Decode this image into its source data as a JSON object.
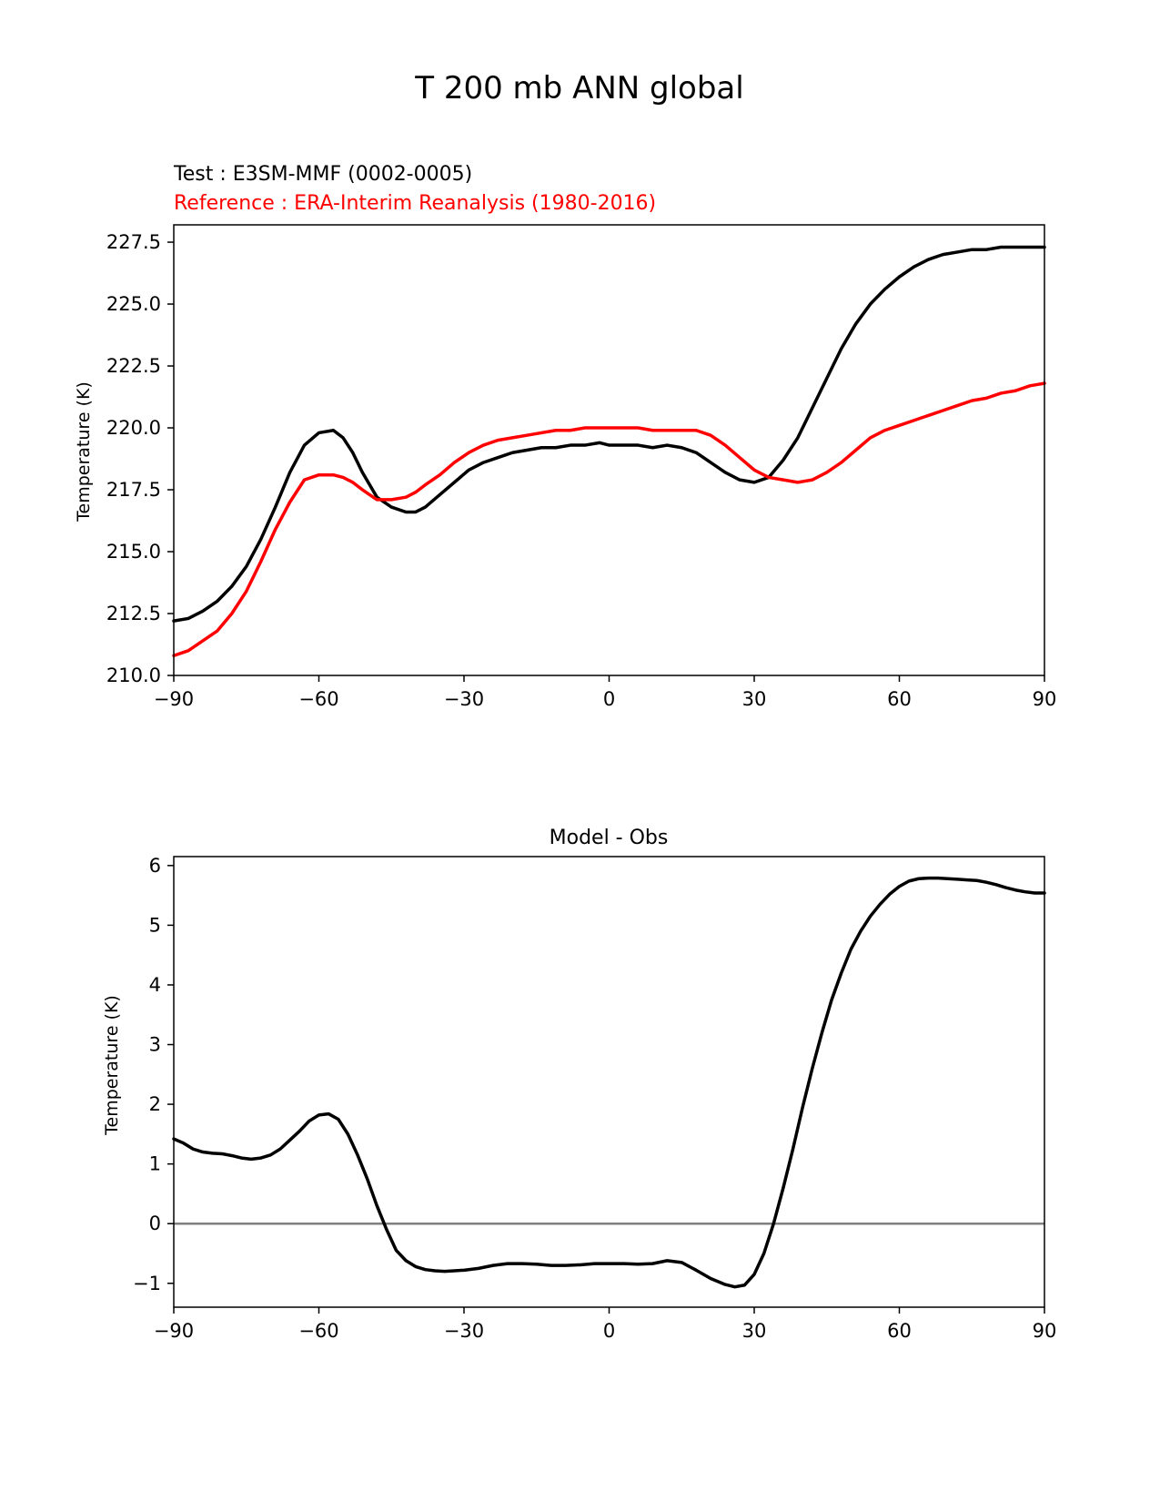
{
  "figure": {
    "title": "T 200 mb ANN global"
  },
  "chart_data": [
    {
      "type": "line",
      "test_label": "Test : E3SM-MMF (0002-0005)",
      "reference_label": "Reference : ERA-Interim Reanalysis (1980-2016)",
      "xlabel": "",
      "ylabel": "Temperature (K)",
      "xlim": [
        -90,
        90
      ],
      "ylim": [
        210,
        228.2
      ],
      "xticks": [
        -90,
        -60,
        -30,
        0,
        30,
        60,
        90
      ],
      "xtick_labels": [
        "−90",
        "−60",
        "−30",
        "0",
        "30",
        "60",
        "90"
      ],
      "yticks": [
        210,
        212.5,
        215,
        217.5,
        220,
        222.5,
        225,
        227.5
      ],
      "ytick_labels": [
        "210.0",
        "212.5",
        "215.0",
        "217.5",
        "220.0",
        "222.5",
        "225.0",
        "227.5"
      ],
      "series": [
        {
          "name": "Test",
          "color": "#000000",
          "x": [
            -90,
            -87,
            -84,
            -81,
            -78,
            -75,
            -72,
            -69,
            -66,
            -63,
            -60,
            -57,
            -55,
            -53,
            -51,
            -48,
            -45,
            -42,
            -40,
            -38,
            -35,
            -32,
            -29,
            -26,
            -23,
            -20,
            -17,
            -14,
            -11,
            -8,
            -5,
            -2,
            0,
            3,
            6,
            9,
            12,
            15,
            18,
            21,
            24,
            27,
            30,
            33,
            36,
            39,
            42,
            45,
            48,
            51,
            54,
            57,
            60,
            63,
            66,
            69,
            72,
            75,
            78,
            81,
            84,
            87,
            90
          ],
          "values": [
            212.2,
            212.3,
            212.6,
            213.0,
            213.6,
            214.4,
            215.5,
            216.8,
            218.2,
            219.3,
            219.8,
            219.9,
            219.6,
            219.0,
            218.2,
            217.2,
            216.8,
            216.6,
            216.6,
            216.8,
            217.3,
            217.8,
            218.3,
            218.6,
            218.8,
            219.0,
            219.1,
            219.2,
            219.2,
            219.3,
            219.3,
            219.4,
            219.3,
            219.3,
            219.3,
            219.2,
            219.3,
            219.2,
            219.0,
            218.6,
            218.2,
            217.9,
            217.8,
            218.0,
            218.7,
            219.6,
            220.8,
            222.0,
            223.2,
            224.2,
            225.0,
            225.6,
            226.1,
            226.5,
            226.8,
            227.0,
            227.1,
            227.2,
            227.2,
            227.3,
            227.3,
            227.3,
            227.3
          ]
        },
        {
          "name": "Reference",
          "color": "#ff0000",
          "x": [
            -90,
            -87,
            -84,
            -81,
            -78,
            -75,
            -72,
            -69,
            -66,
            -63,
            -60,
            -57,
            -55,
            -53,
            -51,
            -48,
            -45,
            -42,
            -40,
            -38,
            -35,
            -32,
            -29,
            -26,
            -23,
            -20,
            -17,
            -14,
            -11,
            -8,
            -5,
            -2,
            0,
            3,
            6,
            9,
            12,
            15,
            18,
            21,
            24,
            27,
            30,
            33,
            36,
            39,
            42,
            45,
            48,
            51,
            54,
            57,
            60,
            63,
            66,
            69,
            72,
            75,
            78,
            81,
            84,
            87,
            90
          ],
          "values": [
            210.8,
            211.0,
            211.4,
            211.8,
            212.5,
            213.4,
            214.6,
            215.9,
            217.0,
            217.9,
            218.1,
            218.1,
            218.0,
            217.8,
            217.5,
            217.1,
            217.1,
            217.2,
            217.4,
            217.7,
            218.1,
            218.6,
            219.0,
            219.3,
            219.5,
            219.6,
            219.7,
            219.8,
            219.9,
            219.9,
            220.0,
            220.0,
            220.0,
            220.0,
            220.0,
            219.9,
            219.9,
            219.9,
            219.9,
            219.7,
            219.3,
            218.8,
            218.3,
            218.0,
            217.9,
            217.8,
            217.9,
            218.2,
            218.6,
            219.1,
            219.6,
            219.9,
            220.1,
            220.3,
            220.5,
            220.7,
            220.9,
            221.1,
            221.2,
            221.4,
            221.5,
            221.7,
            221.8
          ]
        }
      ]
    },
    {
      "type": "line",
      "title": "Model - Obs",
      "xlabel": "",
      "ylabel": "Temperature (K)",
      "xlim": [
        -90,
        90
      ],
      "ylim": [
        -1.4,
        6.15
      ],
      "xticks": [
        -90,
        -60,
        -30,
        0,
        30,
        60,
        90
      ],
      "xtick_labels": [
        "−90",
        "−60",
        "−30",
        "0",
        "30",
        "60",
        "90"
      ],
      "yticks": [
        -1,
        0,
        1,
        2,
        3,
        4,
        5,
        6
      ],
      "ytick_labels": [
        "−1",
        "0",
        "1",
        "2",
        "3",
        "4",
        "5",
        "6"
      ],
      "zero_line": {
        "y": 0,
        "color": "#808080"
      },
      "series": [
        {
          "name": "Model - Obs",
          "color": "#000000",
          "x": [
            -90,
            -88,
            -86,
            -84,
            -82,
            -80,
            -78,
            -76,
            -74,
            -72,
            -70,
            -68,
            -66,
            -64,
            -62,
            -60,
            -58,
            -56,
            -54,
            -52,
            -50,
            -48,
            -46,
            -44,
            -42,
            -40,
            -38,
            -36,
            -34,
            -32,
            -30,
            -27,
            -24,
            -21,
            -18,
            -15,
            -12,
            -9,
            -6,
            -3,
            0,
            3,
            6,
            9,
            12,
            15,
            18,
            21,
            24,
            26,
            28,
            30,
            32,
            34,
            36,
            38,
            40,
            42,
            44,
            46,
            48,
            50,
            52,
            54,
            56,
            58,
            60,
            62,
            64,
            66,
            68,
            70,
            72,
            74,
            76,
            78,
            80,
            82,
            84,
            86,
            88,
            90
          ],
          "values": [
            1.42,
            1.35,
            1.25,
            1.2,
            1.18,
            1.17,
            1.14,
            1.1,
            1.08,
            1.1,
            1.15,
            1.25,
            1.4,
            1.55,
            1.72,
            1.82,
            1.84,
            1.75,
            1.5,
            1.15,
            0.75,
            0.3,
            -0.1,
            -0.45,
            -0.62,
            -0.72,
            -0.77,
            -0.79,
            -0.8,
            -0.79,
            -0.78,
            -0.75,
            -0.7,
            -0.67,
            -0.67,
            -0.68,
            -0.7,
            -0.7,
            -0.69,
            -0.67,
            -0.67,
            -0.67,
            -0.68,
            -0.67,
            -0.62,
            -0.65,
            -0.78,
            -0.92,
            -1.02,
            -1.06,
            -1.03,
            -0.85,
            -0.5,
            0.0,
            0.6,
            1.25,
            1.95,
            2.6,
            3.2,
            3.75,
            4.2,
            4.6,
            4.9,
            5.15,
            5.35,
            5.52,
            5.65,
            5.74,
            5.78,
            5.79,
            5.79,
            5.78,
            5.77,
            5.76,
            5.75,
            5.72,
            5.68,
            5.63,
            5.59,
            5.56,
            5.54,
            5.54
          ]
        }
      ]
    }
  ]
}
